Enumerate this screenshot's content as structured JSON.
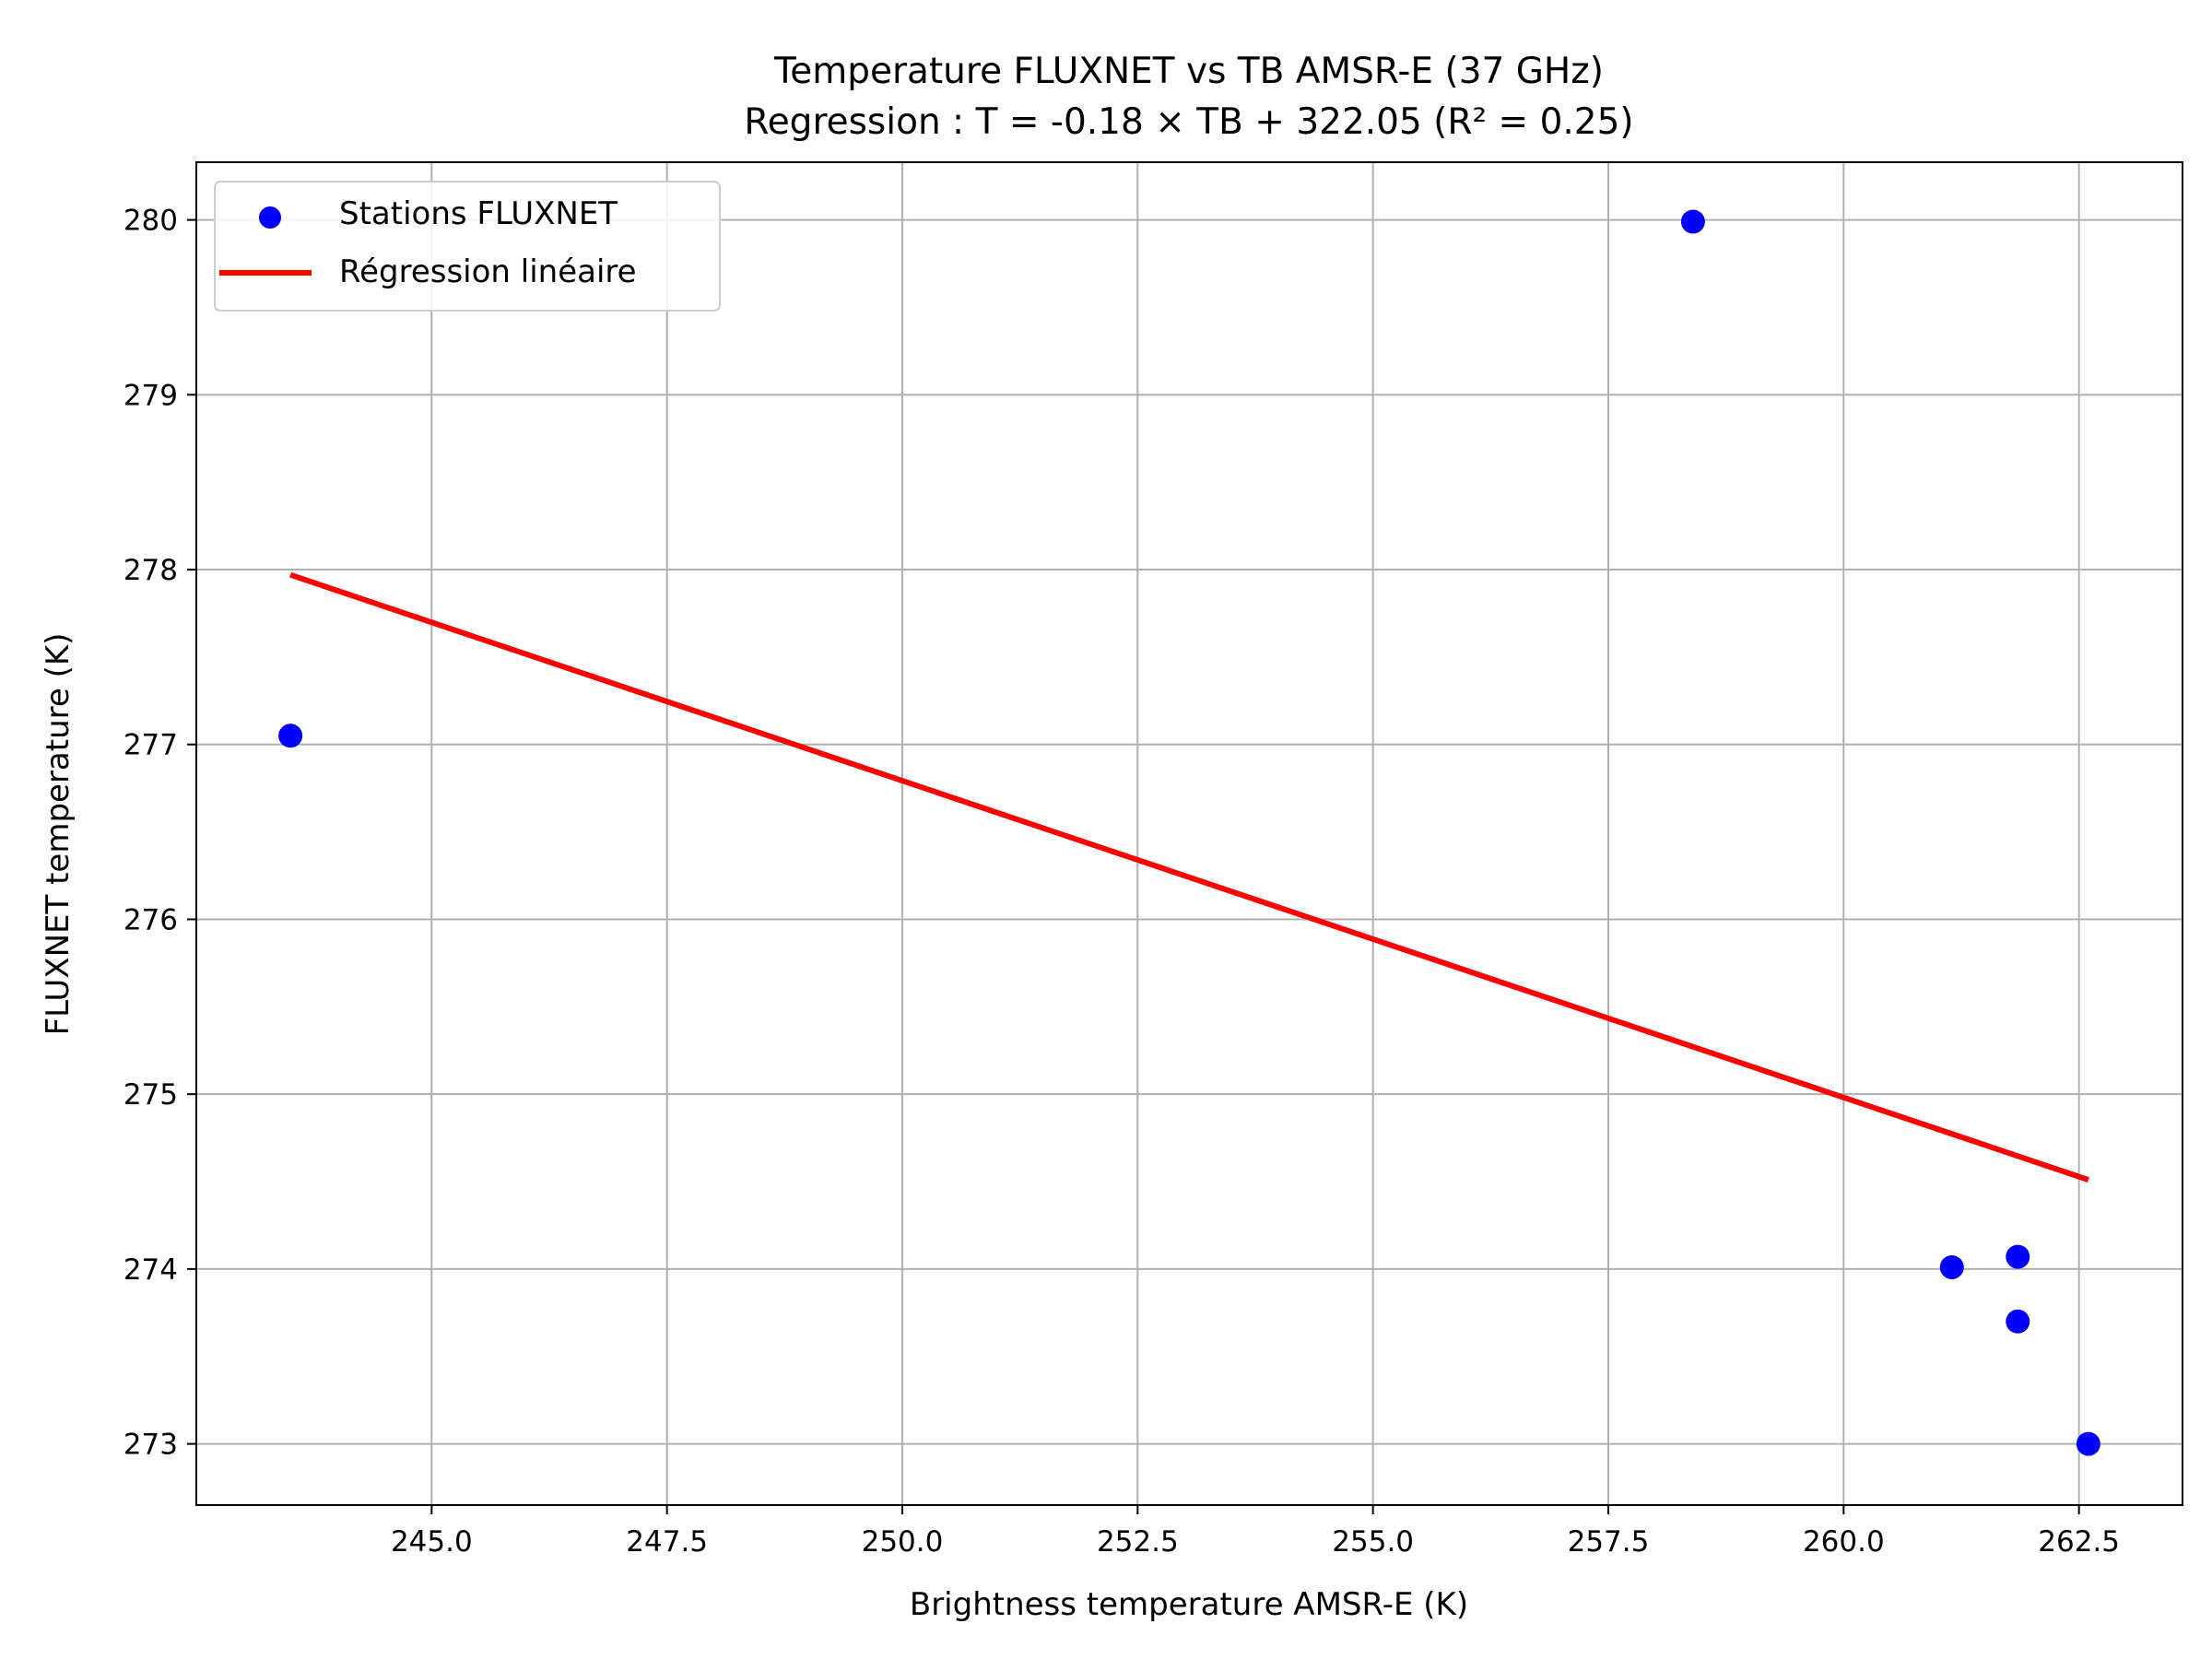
{
  "chart_data": {
    "type": "scatter",
    "title": "Temperature FLUXNET vs TB AMSR-E (37 GHz)",
    "subtitle": "Regression : T = -0.18 × TB + 322.05 (R² = 0.25)",
    "xlabel": "Brightness temperature AMSR-E (K)",
    "ylabel": "FLUXNET temperature (K)",
    "xlim": [
      242.5,
      263.6
    ],
    "ylim": [
      272.65,
      280.33
    ],
    "x_ticks": [
      245.0,
      247.5,
      250.0,
      252.5,
      255.0,
      257.5,
      260.0,
      262.5
    ],
    "x_tick_labels": [
      "245.0",
      "247.5",
      "250.0",
      "252.5",
      "255.0",
      "257.5",
      "260.0",
      "262.5"
    ],
    "y_ticks": [
      273,
      274,
      275,
      276,
      277,
      278,
      279,
      280
    ],
    "y_tick_labels": [
      "273",
      "274",
      "275",
      "276",
      "277",
      "278",
      "279",
      "280"
    ],
    "grid": true,
    "legend_position": "top-left",
    "series": [
      {
        "name": "Stations FLUXNET",
        "kind": "scatter",
        "color": "#0000ff",
        "points": [
          {
            "x": 243.5,
            "y": 277.05
          },
          {
            "x": 258.4,
            "y": 279.99
          },
          {
            "x": 261.15,
            "y": 274.01
          },
          {
            "x": 261.85,
            "y": 274.07
          },
          {
            "x": 261.85,
            "y": 273.7
          },
          {
            "x": 262.6,
            "y": 273.0
          }
        ]
      },
      {
        "name": "Régression linéaire",
        "kind": "line",
        "color": "#ff0000",
        "points": [
          {
            "x": 243.5,
            "y": 277.97
          },
          {
            "x": 262.6,
            "y": 274.51
          }
        ]
      }
    ]
  }
}
